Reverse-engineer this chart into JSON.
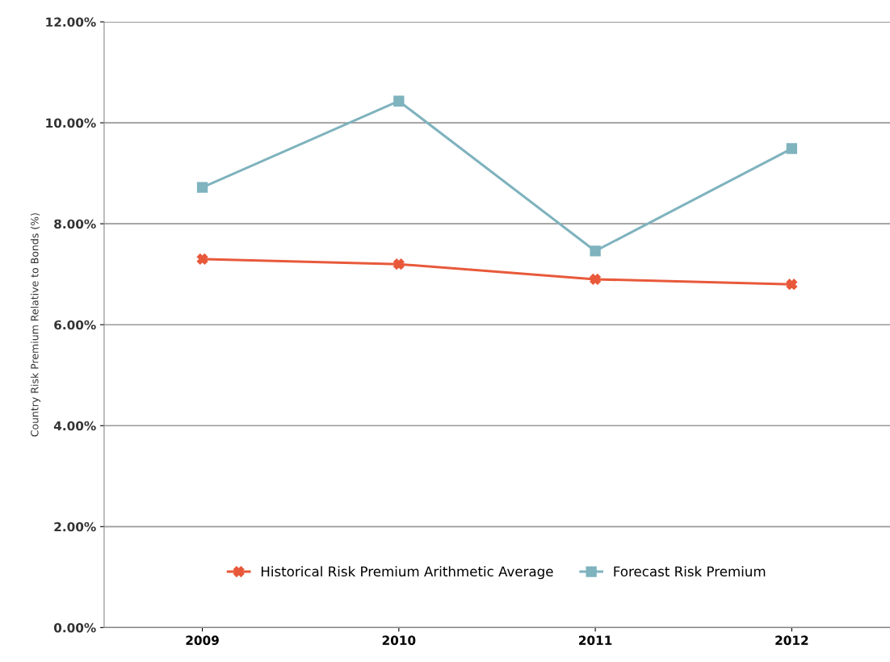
{
  "chart_data": {
    "type": "line",
    "ylabel": "Country Risk Premium Relative to Bonds (%)",
    "categories": [
      "2009",
      "2010",
      "2011",
      "2012"
    ],
    "series": [
      {
        "name": "Historical Risk Premium Arithmetic Average",
        "color": "#e8593a",
        "marker": "cross",
        "values": [
          7.3,
          7.2,
          6.9,
          6.8
        ]
      },
      {
        "name": "Forecast Risk Premium",
        "color": "#7fb3be",
        "marker": "square",
        "values": [
          8.72,
          10.43,
          7.46,
          9.49
        ]
      }
    ],
    "ylim": [
      0,
      12
    ],
    "yticks": [
      {
        "value": 0,
        "label": "0.00%"
      },
      {
        "value": 2,
        "label": "2.00%"
      },
      {
        "value": 4,
        "label": "4.00%"
      },
      {
        "value": 6,
        "label": "6.00%"
      },
      {
        "value": 8,
        "label": "8.00%"
      },
      {
        "value": 10,
        "label": "10.00%"
      },
      {
        "value": 12,
        "label": "12.00%"
      }
    ],
    "grid": "y",
    "legend": "bottom",
    "line_style": "solid"
  }
}
